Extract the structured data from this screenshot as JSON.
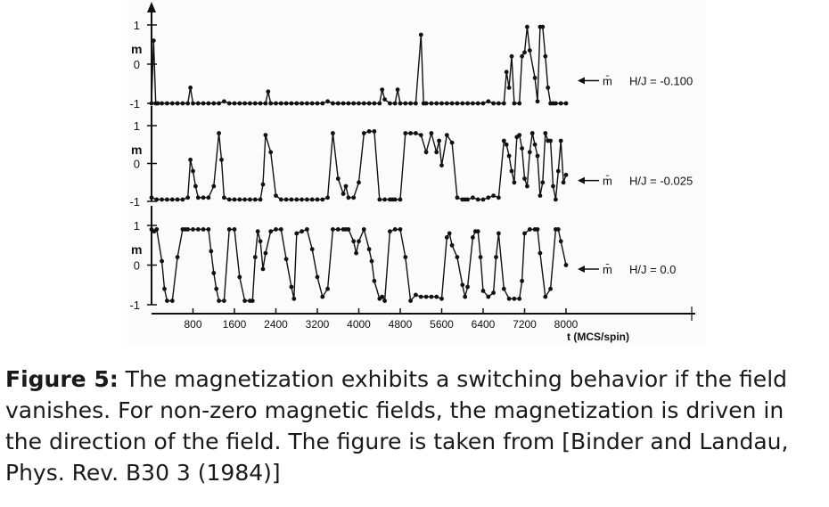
{
  "chart_data": {
    "type": "line",
    "xlabel": "t (MCS/spin)",
    "xticks": [
      800,
      1600,
      2400,
      3200,
      4000,
      4800,
      5600,
      6400,
      7200,
      8000
    ],
    "xlim": [
      0,
      8000
    ],
    "ylim": [
      -1,
      1
    ],
    "yticks": [
      "1",
      "0",
      "-1"
    ],
    "ylabel": "m",
    "series": [
      {
        "name": "m̄",
        "field_label": "H/J = -0.100",
        "x": [
          0,
          40,
          80,
          120,
          200,
          300,
          400,
          500,
          600,
          700,
          750,
          800,
          900,
          1000,
          1100,
          1200,
          1300,
          1400,
          1500,
          1600,
          1700,
          1800,
          1900,
          2000,
          2100,
          2200,
          2250,
          2300,
          2400,
          2500,
          2600,
          2700,
          2800,
          2900,
          3000,
          3100,
          3200,
          3300,
          3400,
          3500,
          3600,
          3700,
          3800,
          3900,
          4000,
          4100,
          4200,
          4300,
          4400,
          4450,
          4500,
          4600,
          4700,
          4750,
          4800,
          4900,
          5000,
          5100,
          5200,
          5250,
          5300,
          5400,
          5500,
          5600,
          5700,
          5800,
          5900,
          6000,
          6100,
          6200,
          6300,
          6400,
          6500,
          6600,
          6700,
          6800,
          6850,
          6900,
          6950,
          7000,
          7100,
          7150,
          7200,
          7250,
          7300,
          7400,
          7450,
          7500,
          7550,
          7600,
          7650,
          7700,
          7750,
          7800,
          7900,
          8000
        ],
        "y": [
          -1,
          0.6,
          -1,
          -1,
          -1,
          -1,
          -1,
          -1,
          -1,
          -1,
          -0.6,
          -1,
          -1,
          -1,
          -1,
          -1,
          -1,
          -0.95,
          -1,
          -1,
          -1,
          -1,
          -1,
          -1,
          -1,
          -1,
          -0.7,
          -1,
          -1,
          -1,
          -1,
          -1,
          -1,
          -1,
          -1,
          -1,
          -1,
          -1,
          -0.95,
          -1,
          -1,
          -1,
          -1,
          -1,
          -1,
          -1,
          -1,
          -1,
          -1,
          -0.65,
          -0.9,
          -1,
          -1,
          -0.65,
          -1,
          -1,
          -1,
          -1,
          0.75,
          -1,
          -1,
          -1,
          -1,
          -1,
          -1,
          -1,
          -1,
          -1,
          -1,
          -1,
          -1,
          -1,
          -0.95,
          -1,
          -1,
          -1,
          -0.2,
          -0.6,
          0.2,
          -1,
          -1,
          0.2,
          0.3,
          0.95,
          0.35,
          -0.35,
          -0.95,
          0.95,
          0.95,
          0.2,
          -0.6,
          -1,
          -1,
          -1,
          -1,
          -1
        ]
      },
      {
        "name": "m̄",
        "field_label": "H/J = -0.025",
        "x": [
          0,
          100,
          200,
          300,
          400,
          500,
          600,
          700,
          750,
          800,
          850,
          900,
          1000,
          1100,
          1200,
          1300,
          1350,
          1400,
          1500,
          1600,
          1700,
          1800,
          1900,
          2000,
          2100,
          2150,
          2200,
          2300,
          2400,
          2500,
          2600,
          2700,
          2800,
          2900,
          3000,
          3100,
          3200,
          3300,
          3400,
          3500,
          3600,
          3700,
          3750,
          3800,
          3900,
          4000,
          4100,
          4200,
          4300,
          4400,
          4500,
          4600,
          4650,
          4700,
          4800,
          4900,
          5000,
          5100,
          5200,
          5300,
          5400,
          5500,
          5550,
          5600,
          5700,
          5800,
          5900,
          6000,
          6050,
          6100,
          6200,
          6300,
          6400,
          6500,
          6600,
          6700,
          6800,
          6850,
          6900,
          6950,
          7000,
          7050,
          7100,
          7150,
          7200,
          7250,
          7300,
          7350,
          7400,
          7450,
          7500,
          7550,
          7600,
          7650,
          7700,
          7750,
          7800,
          7850,
          7900,
          7950,
          8000
        ],
        "y": [
          -0.9,
          -0.95,
          -0.95,
          -0.95,
          -0.95,
          -0.95,
          -0.95,
          -0.9,
          0.1,
          -0.2,
          -0.6,
          -0.9,
          -0.9,
          -0.9,
          -0.6,
          0.8,
          0.1,
          -0.9,
          -0.95,
          -0.95,
          -0.95,
          -0.95,
          -0.95,
          -0.95,
          -0.95,
          -0.55,
          0.75,
          0.3,
          -0.85,
          -0.95,
          -0.95,
          -0.95,
          -0.95,
          -0.95,
          -0.95,
          -0.95,
          -0.95,
          -0.95,
          -0.9,
          0.8,
          -0.4,
          -0.8,
          -0.6,
          -0.9,
          -0.9,
          -0.5,
          0.8,
          0.85,
          0.85,
          -0.95,
          -0.95,
          -0.95,
          -0.95,
          -0.95,
          -0.95,
          0.8,
          0.8,
          0.8,
          0.75,
          0.3,
          0.8,
          0.3,
          0.6,
          -0.05,
          0.75,
          0.55,
          -0.9,
          -0.95,
          -0.95,
          -0.95,
          -0.9,
          -0.95,
          -0.95,
          -0.9,
          -0.85,
          -0.9,
          0.6,
          0.5,
          0.2,
          -0.2,
          -0.5,
          0.7,
          0.75,
          0.4,
          -0.4,
          -0.6,
          0.3,
          0.8,
          0.5,
          0.2,
          -0.85,
          -0.5,
          0.8,
          0.6,
          0.6,
          -0.6,
          -0.95,
          -0.2,
          0.6,
          -0.5,
          -0.3
        ]
      },
      {
        "name": "m̄",
        "field_label": "H/J = 0.0",
        "x": [
          0,
          50,
          100,
          200,
          250,
          300,
          400,
          500,
          600,
          650,
          700,
          800,
          900,
          1000,
          1100,
          1150,
          1200,
          1250,
          1300,
          1400,
          1500,
          1600,
          1700,
          1800,
          1900,
          1950,
          2000,
          2050,
          2100,
          2150,
          2200,
          2300,
          2400,
          2500,
          2600,
          2700,
          2750,
          2800,
          2900,
          3000,
          3100,
          3200,
          3300,
          3400,
          3500,
          3600,
          3700,
          3750,
          3800,
          3900,
          3950,
          4000,
          4100,
          4200,
          4250,
          4300,
          4400,
          4450,
          4500,
          4600,
          4700,
          4800,
          4900,
          5000,
          5100,
          5200,
          5300,
          5400,
          5500,
          5600,
          5700,
          5750,
          5800,
          5900,
          6000,
          6050,
          6100,
          6200,
          6250,
          6300,
          6350,
          6400,
          6500,
          6600,
          6650,
          6700,
          6800,
          6900,
          7000,
          7100,
          7150,
          7200,
          7300,
          7400,
          7450,
          7500,
          7600,
          7700,
          7800,
          7850,
          7900,
          8000
        ],
        "y": [
          0.9,
          0.85,
          0.9,
          0.1,
          -0.6,
          -0.9,
          -0.9,
          0.2,
          0.9,
          0.9,
          0.9,
          0.9,
          0.9,
          0.9,
          0.9,
          0.35,
          -0.2,
          -0.6,
          -0.9,
          -0.9,
          0.9,
          0.9,
          -0.3,
          -0.9,
          -0.9,
          -0.9,
          0.2,
          0.85,
          0.6,
          -0.1,
          0.3,
          0.85,
          0.9,
          0.9,
          0.15,
          -0.55,
          -0.85,
          0.8,
          0.85,
          0.9,
          0.4,
          -0.3,
          -0.8,
          -0.6,
          0.9,
          0.9,
          0.9,
          0.9,
          0.9,
          0.6,
          0.3,
          0.6,
          0.9,
          0.4,
          0.1,
          -0.4,
          -0.85,
          -0.8,
          -0.9,
          0.85,
          0.9,
          0.9,
          0.2,
          -0.9,
          -0.75,
          -0.8,
          -0.8,
          -0.8,
          -0.8,
          -0.85,
          0.7,
          0.8,
          0.5,
          0.2,
          -0.5,
          -0.8,
          -0.55,
          0.7,
          0.85,
          0.85,
          0.2,
          -0.65,
          -0.8,
          -0.7,
          0.2,
          0.8,
          -0.6,
          -0.85,
          -0.85,
          -0.85,
          -0.4,
          0.8,
          0.9,
          0.9,
          0.9,
          0.3,
          -0.8,
          -0.6,
          0.9,
          0.9,
          0.6,
          0.0
        ]
      }
    ]
  },
  "caption": {
    "label": "Figure 5:",
    "text": " The magnetization exhibits a switching behavior if the field vanishes. For non-zero magnetic fields, the magnetization is driven in the direction of the field. The figure is taken from [Binder and Landau, Phys. Rev. B30 3 (1984)]"
  }
}
